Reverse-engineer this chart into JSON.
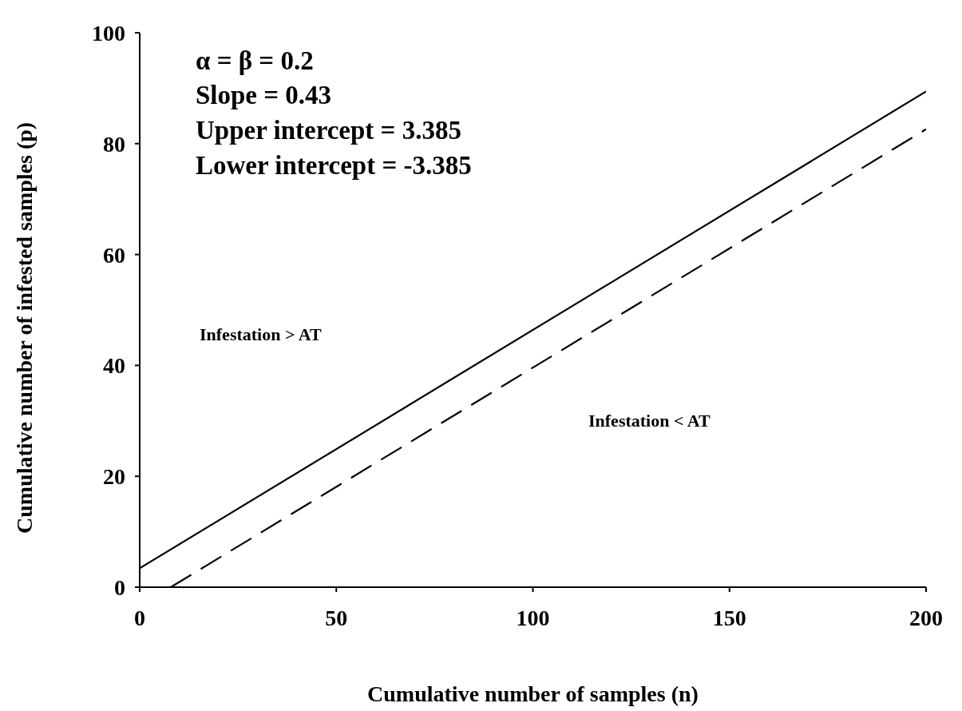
{
  "chart_data": {
    "type": "line",
    "xlabel": "Cumulative number of samples (n)",
    "ylabel": "Cumulative number of infested samples (p)",
    "xlim": [
      0,
      200
    ],
    "ylim": [
      0,
      100
    ],
    "xticks": [
      0,
      50,
      100,
      150,
      200
    ],
    "yticks": [
      0,
      20,
      40,
      60,
      80,
      100
    ],
    "grid": false,
    "legend": false,
    "marker": "none",
    "annotations": [
      "α = β = 0.2",
      "Slope = 0.43",
      "Upper intercept = 3.385",
      "Lower intercept = -3.385",
      "Infestation > AT",
      "Infestation < AT"
    ],
    "series": [
      {
        "color": "#000000",
        "x": [
          0,
          200
        ],
        "values": [
          3.4,
          89.4
        ],
        "line_style": "solid"
      },
      {
        "color": "#000000",
        "x": [
          7.9,
          200
        ],
        "values": [
          0,
          82.6
        ],
        "line_style": "dashed"
      }
    ]
  }
}
